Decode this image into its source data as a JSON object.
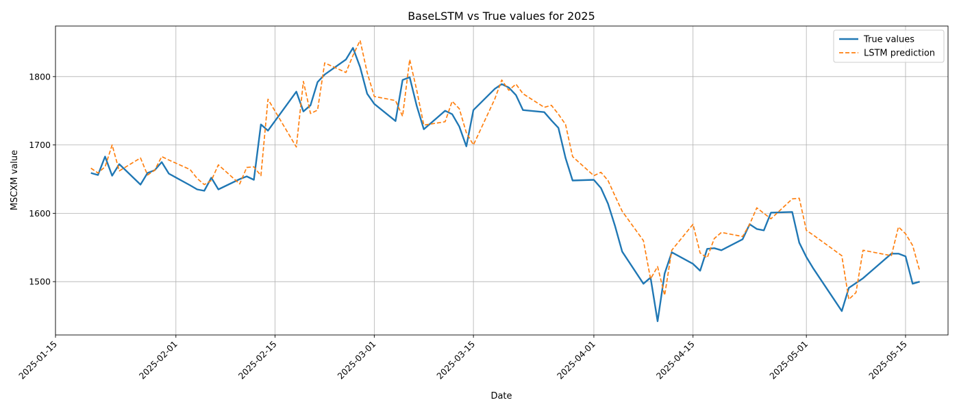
{
  "chart_data": {
    "type": "line",
    "title": "BaseLSTM vs True values for 2025",
    "xlabel": "Date",
    "ylabel": "MSCXM value",
    "x_axis_type": "date",
    "xlim": [
      "2025-01-15",
      "2025-05-21"
    ],
    "ylim": [
      1422,
      1874
    ],
    "x_ticks": [
      "2025-01-15",
      "2025-02-01",
      "2025-02-15",
      "2025-03-01",
      "2025-03-15",
      "2025-04-01",
      "2025-04-15",
      "2025-05-01",
      "2025-05-15"
    ],
    "y_ticks": [
      1500,
      1600,
      1700,
      1800
    ],
    "grid": true,
    "legend_position": "top-right",
    "series": [
      {
        "name": "True values",
        "color": "#1f77b4",
        "style": "solid",
        "points": [
          [
            "2025-01-20",
            1659
          ],
          [
            "2025-01-21",
            1656
          ],
          [
            "2025-01-22",
            1683
          ],
          [
            "2025-01-23",
            1655
          ],
          [
            "2025-01-24",
            1672
          ],
          [
            "2025-01-27",
            1642
          ],
          [
            "2025-01-28",
            1659
          ],
          [
            "2025-01-29",
            1663
          ],
          [
            "2025-01-30",
            1675
          ],
          [
            "2025-01-31",
            1658
          ],
          [
            "2025-02-03",
            1641
          ],
          [
            "2025-02-04",
            1635
          ],
          [
            "2025-02-05",
            1633
          ],
          [
            "2025-02-06",
            1652
          ],
          [
            "2025-02-07",
            1635
          ],
          [
            "2025-02-10",
            1650
          ],
          [
            "2025-02-11",
            1654
          ],
          [
            "2025-02-12",
            1649
          ],
          [
            "2025-02-13",
            1730
          ],
          [
            "2025-02-14",
            1721
          ],
          [
            "2025-02-18",
            1778
          ],
          [
            "2025-02-19",
            1749
          ],
          [
            "2025-02-20",
            1758
          ],
          [
            "2025-02-21",
            1792
          ],
          [
            "2025-02-22",
            1803
          ],
          [
            "2025-02-25",
            1825
          ],
          [
            "2025-02-26",
            1842
          ],
          [
            "2025-02-27",
            1814
          ],
          [
            "2025-02-28",
            1775
          ],
          [
            "2025-03-01",
            1760
          ],
          [
            "2025-03-04",
            1735
          ],
          [
            "2025-03-05",
            1795
          ],
          [
            "2025-03-06",
            1799
          ],
          [
            "2025-03-07",
            1757
          ],
          [
            "2025-03-08",
            1723
          ],
          [
            "2025-03-11",
            1750
          ],
          [
            "2025-03-12",
            1745
          ],
          [
            "2025-03-13",
            1727
          ],
          [
            "2025-03-14",
            1698
          ],
          [
            "2025-03-15",
            1751
          ],
          [
            "2025-03-18",
            1782
          ],
          [
            "2025-03-19",
            1789
          ],
          [
            "2025-03-20",
            1784
          ],
          [
            "2025-03-21",
            1773
          ],
          [
            "2025-03-22",
            1751
          ],
          [
            "2025-03-25",
            1748
          ],
          [
            "2025-03-26",
            1736
          ],
          [
            "2025-03-27",
            1725
          ],
          [
            "2025-03-28",
            1681
          ],
          [
            "2025-03-29",
            1648
          ],
          [
            "2025-04-01",
            1649
          ],
          [
            "2025-04-02",
            1637
          ],
          [
            "2025-04-03",
            1614
          ],
          [
            "2025-04-04",
            1581
          ],
          [
            "2025-04-05",
            1544
          ],
          [
            "2025-04-08",
            1497
          ],
          [
            "2025-04-09",
            1506
          ],
          [
            "2025-04-10",
            1442
          ],
          [
            "2025-04-11",
            1512
          ],
          [
            "2025-04-12",
            1543
          ],
          [
            "2025-04-15",
            1526
          ],
          [
            "2025-04-16",
            1516
          ],
          [
            "2025-04-17",
            1548
          ],
          [
            "2025-04-18",
            1549
          ],
          [
            "2025-04-19",
            1546
          ],
          [
            "2025-04-22",
            1562
          ],
          [
            "2025-04-23",
            1584
          ],
          [
            "2025-04-24",
            1577
          ],
          [
            "2025-04-25",
            1575
          ],
          [
            "2025-04-26",
            1601
          ],
          [
            "2025-04-29",
            1602
          ],
          [
            "2025-04-30",
            1557
          ],
          [
            "2025-05-01",
            1536
          ],
          [
            "2025-05-02",
            1519
          ],
          [
            "2025-05-06",
            1457
          ],
          [
            "2025-05-07",
            1491
          ],
          [
            "2025-05-08",
            1498
          ],
          [
            "2025-05-09",
            1505
          ],
          [
            "2025-05-13",
            1541
          ],
          [
            "2025-05-14",
            1541
          ],
          [
            "2025-05-15",
            1537
          ],
          [
            "2025-05-16",
            1497
          ],
          [
            "2025-05-17",
            1500
          ]
        ]
      },
      {
        "name": "LSTM prediction",
        "color": "#ff7f0e",
        "style": "dashed",
        "points": [
          [
            "2025-01-20",
            1666
          ],
          [
            "2025-01-21",
            1659
          ],
          [
            "2025-01-22",
            1668
          ],
          [
            "2025-01-23",
            1700
          ],
          [
            "2025-01-24",
            1662
          ],
          [
            "2025-01-27",
            1681
          ],
          [
            "2025-01-28",
            1656
          ],
          [
            "2025-01-29",
            1663
          ],
          [
            "2025-01-30",
            1683
          ],
          [
            "2025-01-31",
            1678
          ],
          [
            "2025-02-03",
            1664
          ],
          [
            "2025-02-04",
            1651
          ],
          [
            "2025-02-05",
            1642
          ],
          [
            "2025-02-06",
            1648
          ],
          [
            "2025-02-07",
            1671
          ],
          [
            "2025-02-10",
            1643
          ],
          [
            "2025-02-11",
            1667
          ],
          [
            "2025-02-12",
            1668
          ],
          [
            "2025-02-13",
            1655
          ],
          [
            "2025-02-14",
            1767
          ],
          [
            "2025-02-18",
            1697
          ],
          [
            "2025-02-19",
            1793
          ],
          [
            "2025-02-20",
            1746
          ],
          [
            "2025-02-21",
            1751
          ],
          [
            "2025-02-22",
            1820
          ],
          [
            "2025-02-25",
            1806
          ],
          [
            "2025-02-26",
            1831
          ],
          [
            "2025-02-27",
            1853
          ],
          [
            "2025-02-28",
            1806
          ],
          [
            "2025-03-01",
            1771
          ],
          [
            "2025-03-04",
            1765
          ],
          [
            "2025-03-05",
            1742
          ],
          [
            "2025-03-06",
            1825
          ],
          [
            "2025-03-07",
            1780
          ],
          [
            "2025-03-08",
            1729
          ],
          [
            "2025-03-11",
            1734
          ],
          [
            "2025-03-12",
            1764
          ],
          [
            "2025-03-13",
            1753
          ],
          [
            "2025-03-14",
            1718
          ],
          [
            "2025-03-15",
            1700
          ],
          [
            "2025-03-18",
            1767
          ],
          [
            "2025-03-19",
            1795
          ],
          [
            "2025-03-20",
            1780
          ],
          [
            "2025-03-21",
            1789
          ],
          [
            "2025-03-22",
            1775
          ],
          [
            "2025-03-25",
            1755
          ],
          [
            "2025-03-26",
            1758
          ],
          [
            "2025-03-27",
            1745
          ],
          [
            "2025-03-28",
            1730
          ],
          [
            "2025-03-29",
            1683
          ],
          [
            "2025-04-01",
            1655
          ],
          [
            "2025-04-02",
            1660
          ],
          [
            "2025-04-03",
            1648
          ],
          [
            "2025-04-04",
            1625
          ],
          [
            "2025-04-05",
            1603
          ],
          [
            "2025-04-08",
            1560
          ],
          [
            "2025-04-09",
            1504
          ],
          [
            "2025-04-10",
            1522
          ],
          [
            "2025-04-11",
            1480
          ],
          [
            "2025-04-12",
            1546
          ],
          [
            "2025-04-15",
            1584
          ],
          [
            "2025-04-16",
            1542
          ],
          [
            "2025-04-17",
            1535
          ],
          [
            "2025-04-18",
            1563
          ],
          [
            "2025-04-19",
            1572
          ],
          [
            "2025-04-22",
            1566
          ],
          [
            "2025-04-23",
            1584
          ],
          [
            "2025-04-24",
            1608
          ],
          [
            "2025-04-25",
            1600
          ],
          [
            "2025-04-26",
            1592
          ],
          [
            "2025-04-29",
            1621
          ],
          [
            "2025-04-30",
            1622
          ],
          [
            "2025-05-01",
            1575
          ],
          [
            "2025-05-02",
            1568
          ],
          [
            "2025-05-06",
            1538
          ],
          [
            "2025-05-07",
            1474
          ],
          [
            "2025-05-08",
            1484
          ],
          [
            "2025-05-09",
            1546
          ],
          [
            "2025-05-13",
            1538
          ],
          [
            "2025-05-14",
            1580
          ],
          [
            "2025-05-15",
            1570
          ],
          [
            "2025-05-16",
            1553
          ],
          [
            "2025-05-17",
            1516
          ]
        ]
      }
    ]
  }
}
